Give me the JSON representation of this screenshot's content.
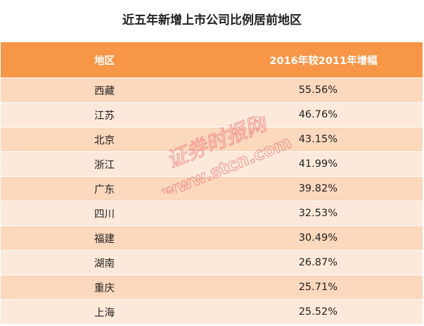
{
  "title": "近五年新增上市公司比例居前地区",
  "watermark": {
    "line1": "证券时报网",
    "line2": "www.stcn.com"
  },
  "chart_data": {
    "type": "table",
    "columns": [
      "地区",
      "2016年较2011年增幅"
    ],
    "rows": [
      [
        "西藏",
        "55.56%"
      ],
      [
        "江苏",
        "46.76%"
      ],
      [
        "北京",
        "43.15%"
      ],
      [
        "浙江",
        "41.99%"
      ],
      [
        "广东",
        "39.82%"
      ],
      [
        "四川",
        "32.53%"
      ],
      [
        "福建",
        "30.49%"
      ],
      [
        "湖南",
        "26.87%"
      ],
      [
        "重庆",
        "25.71%"
      ],
      [
        "上海",
        "25.52%"
      ]
    ],
    "colors": {
      "header": "#f79646",
      "row_dark": "#fcd8bd",
      "row_light": "#fde9d9",
      "watermark": "#e8474f"
    }
  }
}
